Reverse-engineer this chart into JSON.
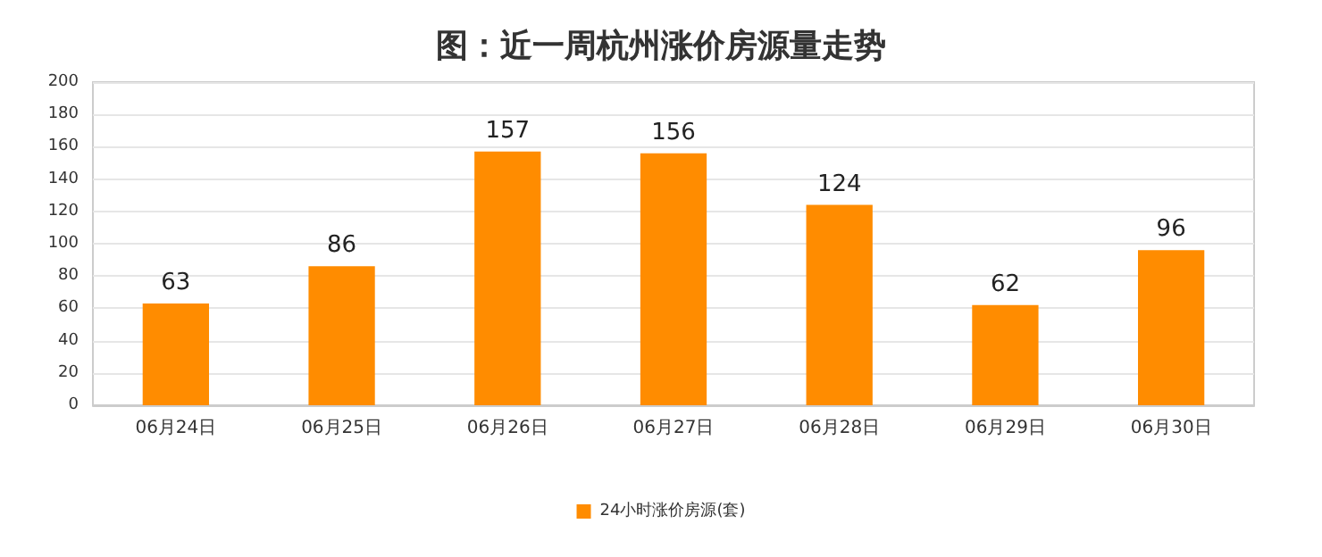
{
  "chart_data": {
    "type": "bar",
    "title": "图：近一周杭州涨价房源量走势",
    "categories": [
      "06月24日",
      "06月25日",
      "06月26日",
      "06月27日",
      "06月28日",
      "06月29日",
      "06月30日"
    ],
    "series": [
      {
        "name": "24小时涨价房源(套)",
        "color": "#ff8c00",
        "values": [
          63,
          86,
          157,
          156,
          124,
          62,
          96
        ]
      }
    ],
    "ylim": [
      0,
      200
    ],
    "yticks": [
      0,
      20,
      40,
      60,
      80,
      100,
      120,
      140,
      160,
      180,
      200
    ],
    "grid": "y",
    "legend": "bottom",
    "data_labels": true
  }
}
